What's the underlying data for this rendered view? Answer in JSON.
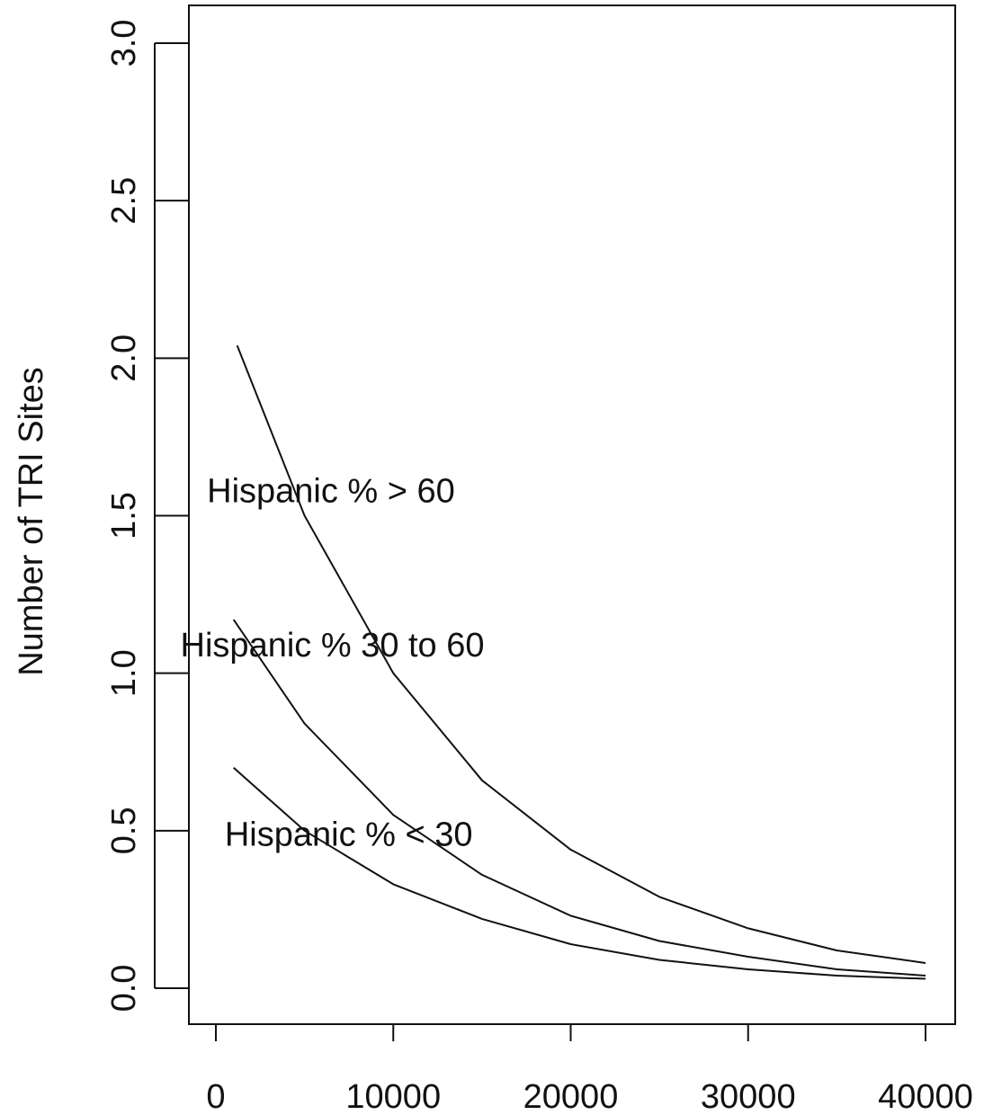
{
  "chart_data": {
    "type": "line",
    "ylabel": "Number of TRI Sites",
    "xlabel": "",
    "xlim": [
      0,
      40000
    ],
    "ylim": [
      0.0,
      3.0
    ],
    "x_ticks": [
      0,
      10000,
      20000,
      30000,
      40000
    ],
    "x_tick_labels": [
      "0",
      "10000",
      "20000",
      "30000",
      "40000"
    ],
    "y_ticks": [
      0.0,
      0.5,
      1.0,
      1.5,
      2.0,
      2.5,
      3.0
    ],
    "y_tick_labels": [
      "0.0",
      "0.5",
      "1.0",
      "1.5",
      "2.0",
      "2.5",
      "3.0"
    ],
    "grid": false,
    "legend": "none",
    "line_color": "#111111",
    "series": [
      {
        "label": "Hispanic % > 60",
        "x": [
          1200,
          5000,
          10000,
          15000,
          20000,
          25000,
          30000,
          35000,
          40000
        ],
        "y": [
          2.04,
          1.5,
          1.0,
          0.66,
          0.44,
          0.29,
          0.19,
          0.12,
          0.08
        ]
      },
      {
        "label": "Hispanic % 30 to 60",
        "x": [
          1000,
          5000,
          10000,
          15000,
          20000,
          25000,
          30000,
          35000,
          40000
        ],
        "y": [
          1.17,
          0.84,
          0.55,
          0.36,
          0.23,
          0.15,
          0.1,
          0.06,
          0.04
        ]
      },
      {
        "label": "Hispanic % < 30",
        "x": [
          1000,
          5000,
          10000,
          15000,
          20000,
          25000,
          30000,
          35000,
          40000
        ],
        "y": [
          0.7,
          0.5,
          0.33,
          0.22,
          0.14,
          0.09,
          0.06,
          0.04,
          0.03
        ]
      }
    ],
    "annotations": [
      {
        "text": "Hispanic % > 60",
        "x": -500,
        "y": 1.58
      },
      {
        "text": "Hispanic % 30 to 60",
        "x": -2000,
        "y": 1.09
      },
      {
        "text": "Hispanic % < 30",
        "x": 500,
        "y": 0.49
      }
    ]
  }
}
